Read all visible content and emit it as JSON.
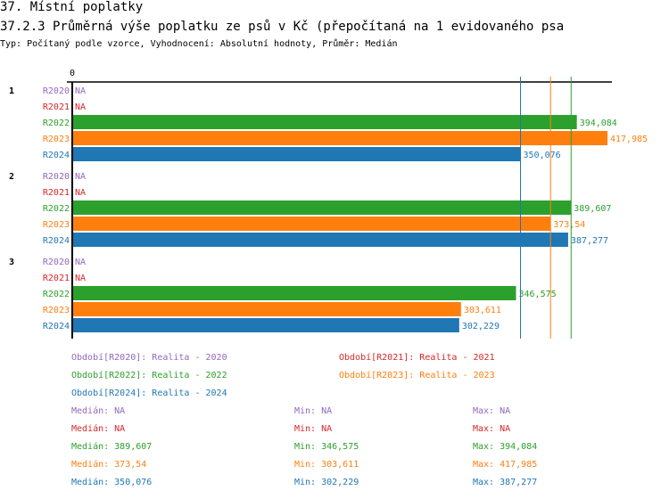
{
  "title": "37. Místní poplatky",
  "subtitle": "37.2.3 Průměrná výše poplatku ze psů v Kč (přepočítaná na 1 evidovaného psa",
  "info": "Typ: Počítaný podle vzorce, Vyhodnocení: Absolutní hodnoty, Průměr: Medián",
  "chart_data": {
    "type": "bar",
    "orientation": "horizontal",
    "xlim": [
      0,
      417.985
    ],
    "x_tick_labels": [
      "0"
    ],
    "groups": [
      "1",
      "2",
      "3"
    ],
    "series": [
      {
        "name": "R2020",
        "color": "#9467bd",
        "values": [
          null,
          null,
          null
        ],
        "labels": [
          "NA",
          "NA",
          "NA"
        ]
      },
      {
        "name": "R2021",
        "color": "#d62728",
        "values": [
          null,
          null,
          null
        ],
        "labels": [
          "NA",
          "NA",
          "NA"
        ]
      },
      {
        "name": "R2022",
        "color": "#2ca02c",
        "values": [
          394.084,
          389.607,
          346.575
        ],
        "labels": [
          "394,084",
          "389,607",
          "346,575"
        ]
      },
      {
        "name": "R2023",
        "color": "#ff7f0e",
        "values": [
          417.985,
          373.54,
          303.611
        ],
        "labels": [
          "417,985",
          "373,54",
          "303,611"
        ]
      },
      {
        "name": "R2024",
        "color": "#1f77b4",
        "values": [
          350.076,
          387.277,
          302.229
        ],
        "labels": [
          "350,076",
          "387,277",
          "302,229"
        ]
      }
    ],
    "median_lines": [
      {
        "series": "R2024",
        "value": 350.076
      },
      {
        "series": "R2023",
        "value": 373.54
      },
      {
        "series": "R2022",
        "value": 389.607
      }
    ]
  },
  "legend": [
    {
      "text": "Období[R2020]: Realita - 2020",
      "color": "#9467bd"
    },
    {
      "text": "Období[R2021]: Realita - 2021",
      "color": "#d62728"
    },
    {
      "text": "Období[R2022]: Realita - 2022",
      "color": "#2ca02c"
    },
    {
      "text": "Období[R2023]: Realita - 2023",
      "color": "#ff7f0e"
    },
    {
      "text": "Období[R2024]: Realita - 2024",
      "color": "#1f77b4"
    }
  ],
  "stats": [
    {
      "median": "Medián: NA",
      "min": "Min: NA",
      "max": "Max: NA",
      "color": "#9467bd"
    },
    {
      "median": "Medián: NA",
      "min": "Min: NA",
      "max": "Max: NA",
      "color": "#d62728"
    },
    {
      "median": "Medián: 389,607",
      "min": "Min: 346,575",
      "max": "Max: 394,084",
      "color": "#2ca02c"
    },
    {
      "median": "Medián: 373,54",
      "min": "Min: 303,611",
      "max": "Max: 417,985",
      "color": "#ff7f0e"
    },
    {
      "median": "Medián: 350,076",
      "min": "Min: 302,229",
      "max": "Max: 387,277",
      "color": "#1f77b4"
    }
  ]
}
